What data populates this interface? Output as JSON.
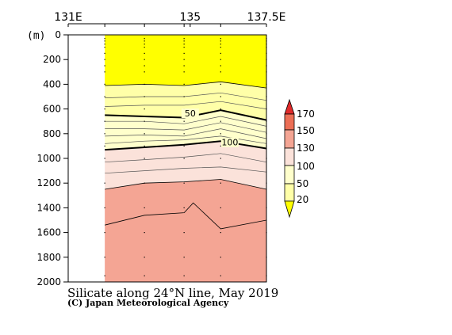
{
  "chart_data": {
    "type": "contour-section",
    "title": "Silicate along 24°N line, May 2019",
    "credit": "(C) Japan Meteorological Agency",
    "y_unit": "(m)",
    "x_ticks": [
      {
        "v": 131,
        "label": "131E"
      },
      {
        "v": 135,
        "label": "135"
      },
      {
        "v": 137.5,
        "label": "137.5E"
      }
    ],
    "y_ticks": [
      0,
      200,
      400,
      600,
      800,
      1000,
      1200,
      1400,
      1600,
      1800,
      2000
    ],
    "xlim": [
      131,
      137.5
    ],
    "ylim": [
      0,
      2000
    ],
    "data_x_range": [
      132.2,
      137.5
    ],
    "stations_x": [
      132.2,
      133.5,
      134.8,
      136.0,
      137.5
    ],
    "sample_depths": [
      30,
      50,
      75,
      100,
      150,
      200,
      250,
      300,
      400,
      500,
      600,
      700,
      800,
      900,
      1000,
      1200,
      1400,
      1600,
      1800,
      1950
    ],
    "levels": [
      20,
      50,
      100,
      130,
      150,
      170
    ],
    "colorbar_labels": [
      "170",
      "150",
      "130",
      "100",
      "50",
      "20"
    ],
    "fill_colors": {
      "below_20": "#ffff00",
      "20_50": "#ffffa8",
      "50_100": "#ffffcc",
      "100_130": "#fbe2da",
      "130_150": "#f4a594",
      "150_170": "#ec6e55",
      "above_170": "#e02a2a"
    },
    "contours": [
      {
        "level": 20,
        "bold": false,
        "x": [
          132.2,
          133.5,
          134.8,
          136.0,
          137.5
        ],
        "depth": [
          410,
          400,
          410,
          380,
          430
        ]
      },
      {
        "level": 50,
        "bold": true,
        "label": "50",
        "x": [
          132.2,
          133.5,
          134.8,
          136.0,
          137.5
        ],
        "depth": [
          650,
          660,
          670,
          610,
          690
        ]
      },
      {
        "level": 100,
        "bold": true,
        "label": "100",
        "x": [
          132.2,
          133.5,
          134.8,
          136.0,
          137.5
        ],
        "depth": [
          930,
          910,
          890,
          860,
          920
        ]
      },
      {
        "level": 130,
        "bold": false,
        "x": [
          132.2,
          133.5,
          134.8,
          136.0,
          137.5
        ],
        "depth": [
          1250,
          1200,
          1190,
          1170,
          1250
        ]
      },
      {
        "level": 150,
        "bold": false,
        "x": [
          132.2,
          133.5,
          134.8,
          135.1,
          136.0,
          137.5
        ],
        "depth": [
          1540,
          1460,
          1440,
          1360,
          1570,
          1500
        ]
      }
    ],
    "thin_lines": [
      {
        "x": [
          132.2,
          133.5,
          134.8,
          136.0,
          137.5
        ],
        "depth": [
          510,
          500,
          500,
          470,
          530
        ]
      },
      {
        "x": [
          132.2,
          133.5,
          134.8,
          136.0,
          137.5
        ],
        "depth": [
          580,
          570,
          570,
          540,
          600
        ]
      },
      {
        "x": [
          132.2,
          133.5,
          134.8,
          136.0,
          137.5
        ],
        "depth": [
          700,
          700,
          720,
          660,
          740
        ]
      },
      {
        "x": [
          132.2,
          133.5,
          134.8,
          136.0,
          137.5
        ],
        "depth": [
          760,
          760,
          770,
          710,
          790
        ]
      },
      {
        "x": [
          132.2,
          133.5,
          134.8,
          136.0,
          137.5
        ],
        "depth": [
          820,
          810,
          820,
          760,
          840
        ]
      },
      {
        "x": [
          132.2,
          133.5,
          134.8,
          136.0,
          137.5
        ],
        "depth": [
          880,
          860,
          850,
          820,
          880
        ]
      },
      {
        "x": [
          132.2,
          133.5,
          134.8,
          136.0,
          137.5
        ],
        "depth": [
          1030,
          1010,
          990,
          960,
          1030
        ]
      },
      {
        "x": [
          132.2,
          133.5,
          134.8,
          136.0,
          137.5
        ],
        "depth": [
          1120,
          1100,
          1080,
          1070,
          1110
        ]
      }
    ]
  }
}
